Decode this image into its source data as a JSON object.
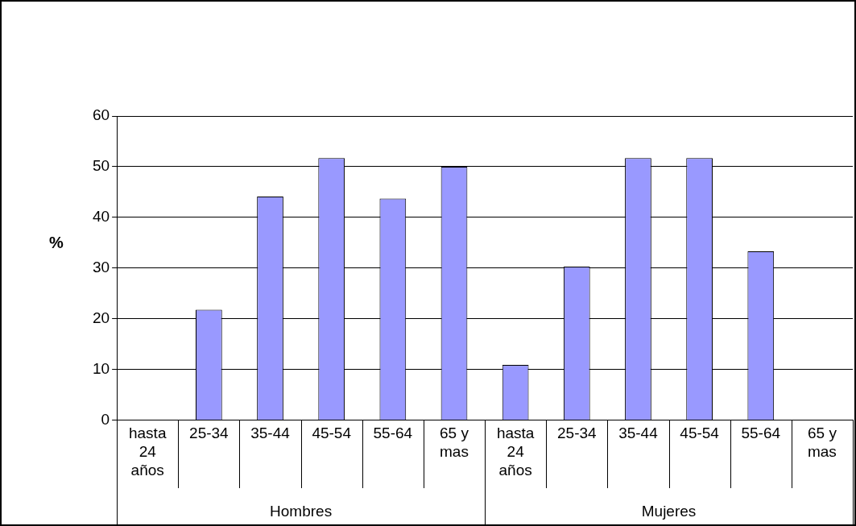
{
  "chart_data": {
    "type": "bar",
    "ylabel": "%",
    "categories": [
      "hasta 24 años",
      "25-34",
      "35-44",
      "45-54",
      "55-64",
      "65 y mas",
      "hasta 24 años",
      "25-34",
      "35-44",
      "45-54",
      "55-64",
      "65 y mas"
    ],
    "values": [
      null,
      21.8,
      44.1,
      51.7,
      43.7,
      50.0,
      10.9,
      30.3,
      51.7,
      51.7,
      33.3,
      null
    ],
    "color": "#9999ff",
    "ylim": [
      0,
      60
    ],
    "yticks": [
      0,
      10,
      20,
      30,
      40,
      50,
      60
    ],
    "grid": "y",
    "legend": false,
    "annotations": [
      "Hombres",
      "Mujeres"
    ]
  }
}
